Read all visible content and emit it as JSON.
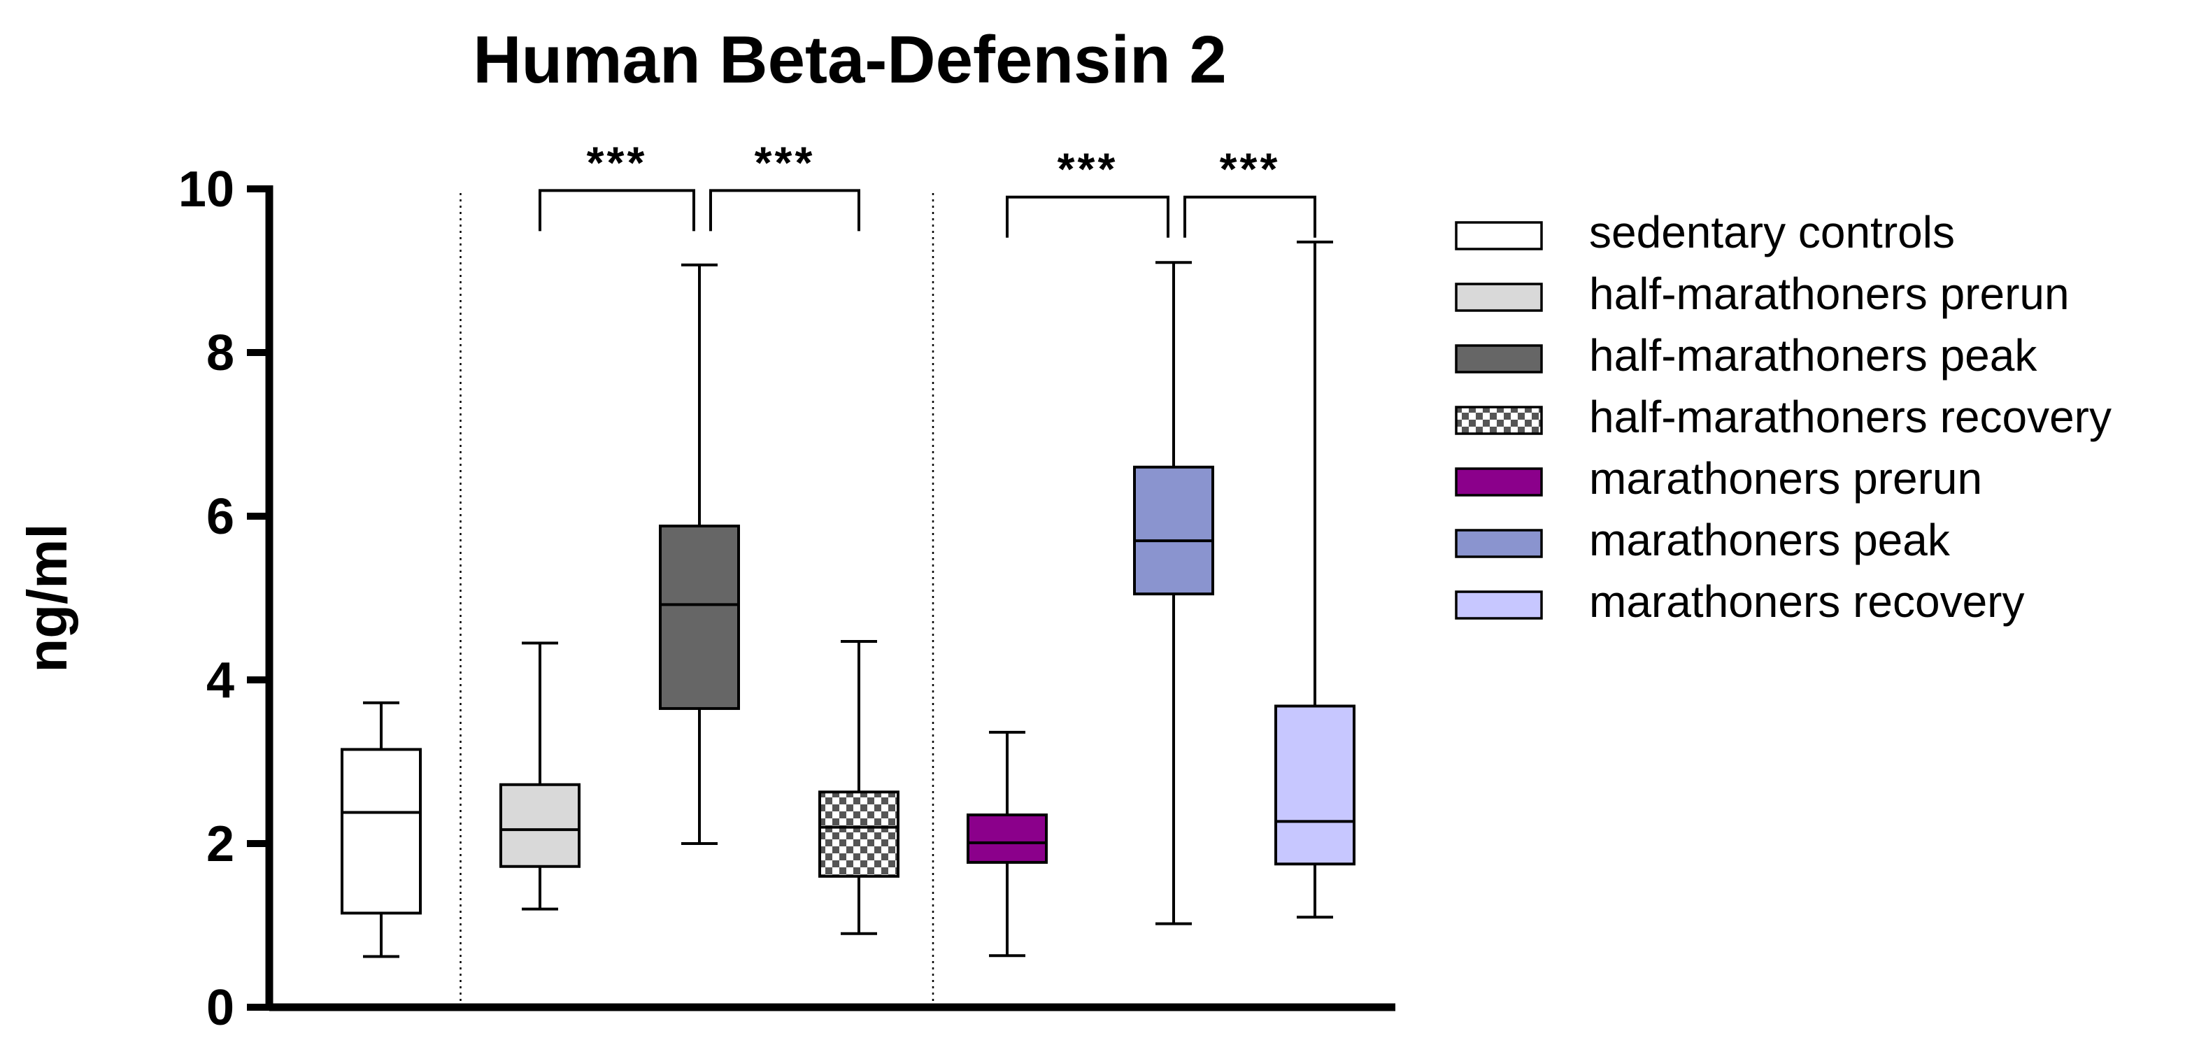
{
  "chart_data": {
    "type": "boxplot",
    "title": "Human Beta-Defensin 2",
    "xlabel": "",
    "ylabel": "ng/ml",
    "ylim": [
      0,
      10
    ],
    "yticks": [
      "0",
      "2",
      "4",
      "6",
      "8",
      "10"
    ],
    "series": [
      {
        "name": "sedentary controls",
        "color": "#ffffff",
        "pattern": "none",
        "min": 0.62,
        "q1": 1.15,
        "median": 2.38,
        "q3": 3.15,
        "max": 3.72
      },
      {
        "name": "half-marathoners prerun",
        "color": "#d9d9d9",
        "pattern": "none",
        "min": 1.2,
        "q1": 1.72,
        "median": 2.17,
        "q3": 2.72,
        "max": 4.45
      },
      {
        "name": "half-marathoners peak",
        "color": "#666666",
        "pattern": "none",
        "min": 2.0,
        "q1": 3.65,
        "median": 4.92,
        "q3": 5.88,
        "max": 9.07
      },
      {
        "name": "half-marathoners recovery",
        "color": "#bdbdbd",
        "pattern": "checker",
        "min": 0.9,
        "q1": 1.6,
        "median": 2.2,
        "q3": 2.63,
        "max": 4.47
      },
      {
        "name": "marathoners prerun",
        "color": "#8b008b",
        "pattern": "none",
        "min": 0.63,
        "q1": 1.77,
        "median": 2.01,
        "q3": 2.35,
        "max": 3.36
      },
      {
        "name": "marathoners peak",
        "color": "#8a94cf",
        "pattern": "none",
        "min": 1.02,
        "q1": 5.05,
        "median": 5.7,
        "q3": 6.6,
        "max": 9.1
      },
      {
        "name": "marathoners recovery",
        "color": "#c7c7ff",
        "pattern": "none",
        "min": 1.1,
        "q1": 1.75,
        "median": 2.27,
        "q3": 3.68,
        "max": 9.35
      }
    ],
    "group_separators_after": [
      1,
      4
    ],
    "significance": [
      {
        "from": 1,
        "to": 2,
        "label": "***",
        "y": 9.98
      },
      {
        "from": 2,
        "to": 3,
        "label": "***",
        "y": 9.98
      },
      {
        "from": 4,
        "to": 5,
        "label": "***",
        "y": 9.9
      },
      {
        "from": 5,
        "to": 6,
        "label": "***",
        "y": 9.9
      }
    ],
    "legend_position": "right",
    "grid": false
  }
}
